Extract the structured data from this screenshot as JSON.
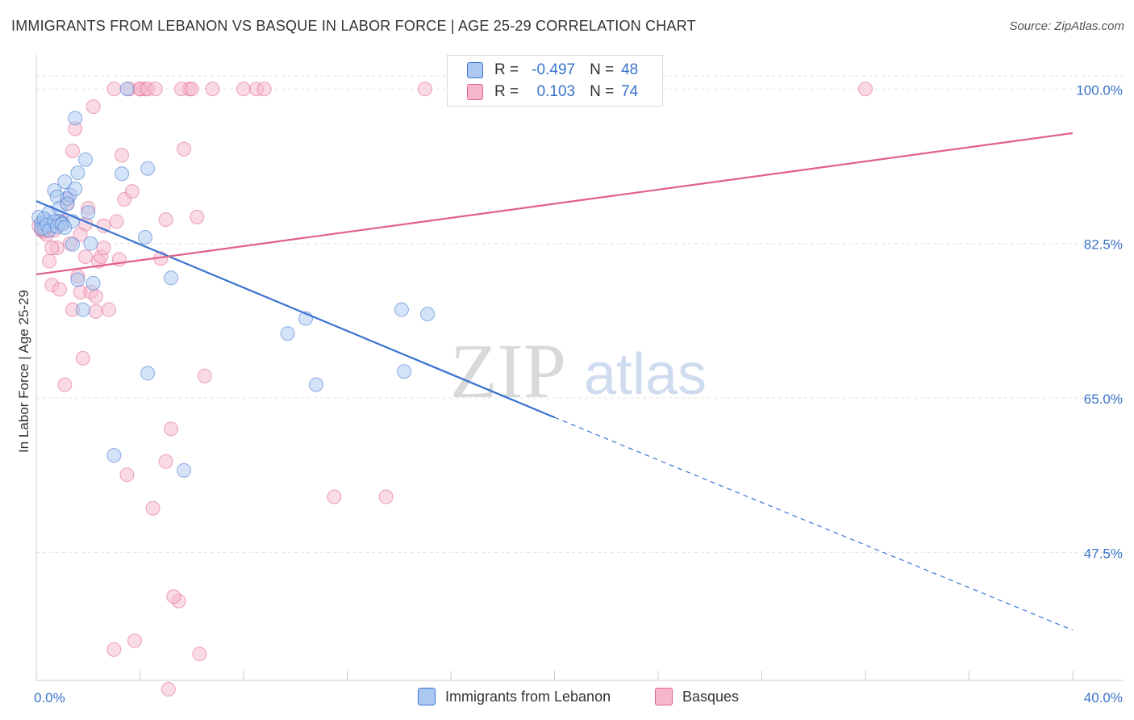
{
  "title": "IMMIGRANTS FROM LEBANON VS BASQUE IN LABOR FORCE | AGE 25-29 CORRELATION CHART",
  "source": "Source: ZipAtlas.com",
  "watermark": {
    "zip": "ZIP",
    "atlas": "atlas"
  },
  "legend_top": {
    "rows": [
      {
        "r_label": "R =",
        "r_value": "-0.497",
        "n_label": "N =",
        "n_value": "48"
      },
      {
        "r_label": "R =",
        "r_value": "0.103",
        "n_label": "N =",
        "n_value": "74"
      }
    ]
  },
  "colors": {
    "blue": "#3a73d0",
    "blue_fill": "#aac8f0",
    "pink": "#e0608e",
    "pink_fill": "#f6b6cb",
    "tick_text": "#3a73c9",
    "grid": "#e3e3e3"
  },
  "chart_data": {
    "type": "scatter",
    "title": "IMMIGRANTS FROM LEBANON VS BASQUE IN LABOR FORCE | AGE 25-29 CORRELATION CHART",
    "xlabel": "",
    "ylabel": "In Labor Force | Age 25-29",
    "xlim": [
      0,
      40
    ],
    "ylim": [
      33,
      103.5
    ],
    "x_tick_labels": [
      "0.0%",
      "40.0%"
    ],
    "y_ticks": [
      47.5,
      65.0,
      82.5,
      100.0
    ],
    "y_tick_labels": [
      "47.5%",
      "65.0%",
      "82.5%",
      "100.0%"
    ],
    "grid": true,
    "legend": "bottom-center",
    "series": [
      {
        "name": "Immigrants from Lebanon",
        "color": "#3a73d0",
        "r": -0.497,
        "n": 48,
        "trend": {
          "x": [
            0,
            20
          ],
          "y": [
            87.3,
            62.8
          ],
          "dashed_to": [
            40,
            38.7
          ]
        },
        "x": [
          0.1,
          0.2,
          0.3,
          0.4,
          0.5,
          0.6,
          0.7,
          0.8,
          0.9,
          1.0,
          1.1,
          1.2,
          1.3,
          1.4,
          1.5,
          1.6,
          0.2,
          0.3,
          0.4,
          0.5,
          0.7,
          0.8,
          0.9,
          1.0,
          1.1,
          1.2,
          1.4,
          1.5,
          1.6,
          1.8,
          1.9,
          2.0,
          2.1,
          2.2,
          3.0,
          3.5,
          4.2,
          4.3,
          5.2,
          5.7,
          4.3,
          3.3,
          9.7,
          10.4,
          10.8,
          14.1,
          14.2,
          15.1
        ],
        "y": [
          85.5,
          84.8,
          84.3,
          85.0,
          86.0,
          84.5,
          88.5,
          87.8,
          85.0,
          84.8,
          89.5,
          87.6,
          88.0,
          85.0,
          88.7,
          90.5,
          84.2,
          85.3,
          84.6,
          84.0,
          85.0,
          84.4,
          86.5,
          84.7,
          84.3,
          87.0,
          82.4,
          96.7,
          78.4,
          75.0,
          92.0,
          86.0,
          82.5,
          78.0,
          58.5,
          100.0,
          83.2,
          67.8,
          78.6,
          56.8,
          91.0,
          90.4,
          72.3,
          74.0,
          66.5,
          75.0,
          68.0,
          74.5
        ]
      },
      {
        "name": "Basques",
        "color": "#e0608e",
        "r": 0.103,
        "n": 74,
        "trend": {
          "x": [
            0,
            40
          ],
          "y": [
            79.0,
            95.0
          ]
        },
        "x": [
          0.1,
          0.2,
          0.3,
          0.4,
          0.5,
          0.6,
          0.7,
          0.8,
          0.9,
          1.0,
          1.1,
          1.2,
          1.3,
          1.4,
          1.5,
          1.6,
          1.7,
          1.8,
          1.9,
          2.0,
          2.1,
          2.2,
          2.3,
          2.4,
          2.5,
          2.6,
          2.8,
          3.0,
          3.1,
          3.3,
          3.4,
          3.5,
          3.7,
          3.8,
          4.0,
          4.2,
          4.5,
          4.8,
          5.0,
          5.1,
          5.2,
          5.5,
          5.7,
          5.9,
          6.2,
          6.5,
          8.0,
          8.5,
          8.8,
          11.5,
          13.5,
          15.0,
          32.0,
          0.3,
          0.6,
          0.9,
          1.2,
          1.4,
          1.7,
          1.9,
          2.3,
          2.6,
          3.0,
          3.2,
          3.6,
          4.0,
          4.3,
          4.6,
          5.0,
          5.3,
          5.6,
          6.0,
          6.3,
          6.8
        ],
        "y": [
          84.5,
          84.0,
          83.8,
          83.5,
          80.5,
          77.8,
          84.0,
          82.0,
          77.3,
          85.0,
          66.5,
          87.5,
          82.5,
          75.0,
          95.5,
          78.8,
          77.0,
          69.5,
          84.7,
          86.5,
          77.0,
          98.0,
          74.8,
          80.5,
          81.0,
          82.0,
          75.0,
          36.5,
          85.0,
          92.5,
          87.5,
          56.3,
          88.4,
          37.5,
          100.0,
          100.0,
          52.5,
          80.8,
          85.2,
          32.0,
          61.5,
          42.0,
          93.2,
          100.0,
          85.5,
          67.5,
          100.0,
          100.0,
          100.0,
          53.8,
          53.8,
          100.0,
          100.0,
          84.0,
          82.0,
          85.0,
          87.0,
          93.0,
          83.5,
          81.0,
          76.5,
          84.5,
          100.0,
          80.7,
          100.0,
          100.0,
          100.0,
          100.0,
          57.8,
          42.5,
          100.0,
          100.0,
          36.0,
          100.0
        ]
      }
    ]
  }
}
